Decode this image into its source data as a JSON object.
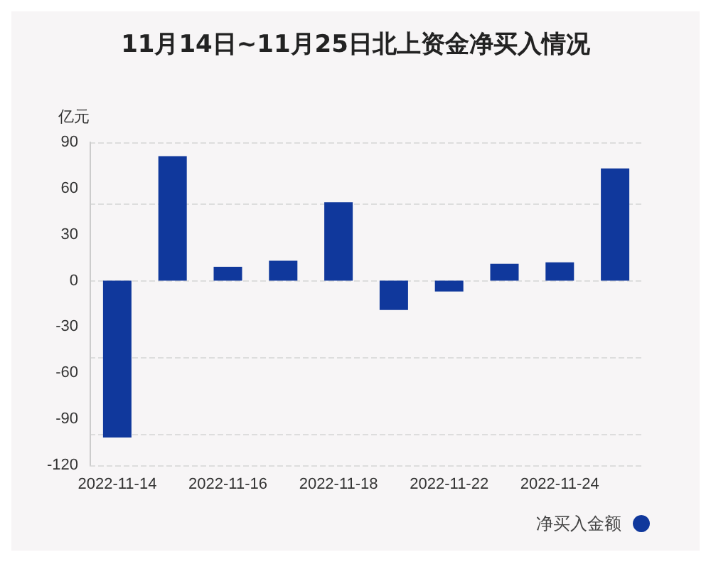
{
  "chart_data": {
    "type": "bar",
    "title": "11月14日~11月25日北上资金净买入情况",
    "ylabel": "亿元",
    "categories": [
      "2022-11-14",
      null,
      "2022-11-16",
      null,
      "2022-11-18",
      null,
      "2022-11-22",
      null,
      "2022-11-24",
      null
    ],
    "series": [
      {
        "name": "净买入金额",
        "color": "#10389c",
        "values": [
          -102,
          81,
          9,
          13,
          51,
          -19,
          -7,
          11,
          12,
          73
        ]
      }
    ],
    "ylim": [
      -120,
      90
    ],
    "yticks": [
      -120,
      -90,
      -60,
      -30,
      0,
      30,
      60,
      90
    ],
    "grid": "y",
    "legend": "bottom right"
  }
}
